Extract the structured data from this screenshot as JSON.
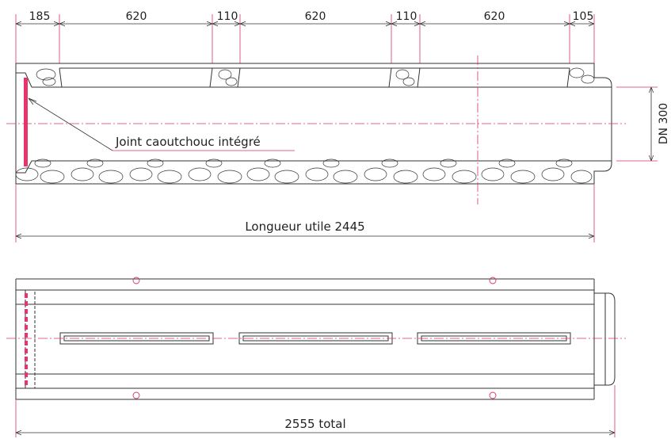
{
  "top_view": {
    "segments": [
      "185",
      "620",
      "110",
      "620",
      "110",
      "620",
      "105"
    ],
    "diameter_label": "DN 300",
    "joint_label": "Joint caoutchouc intégré",
    "length_label": "Longueur utile 2445"
  },
  "bottom_view": {
    "total_label": "2555 total"
  },
  "colors": {
    "line": "#333333",
    "dimension": "#d6336c",
    "joint": "#e8336b"
  }
}
